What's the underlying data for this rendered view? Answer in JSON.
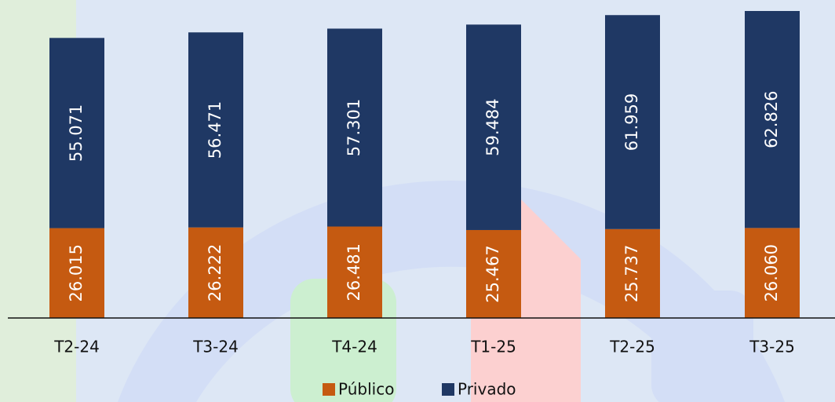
{
  "chart_data": {
    "type": "stacked_bar",
    "categories": [
      "T2-24",
      "T3-24",
      "T4-24",
      "T1-25",
      "T2-25",
      "T3-25"
    ],
    "series": [
      {
        "name": "Público",
        "color": "#c55a11",
        "values": [
          26015,
          26222,
          26481,
          25467,
          25737,
          26060
        ],
        "value_labels": [
          "26.015",
          "26.222",
          "26.481",
          "25.467",
          "25.737",
          "26.060"
        ]
      },
      {
        "name": "Privado",
        "color": "#1f3864",
        "values": [
          55071,
          56471,
          57301,
          59484,
          61959,
          62826
        ],
        "value_labels": [
          "55.071",
          "56.471",
          "57.301",
          "59.484",
          "61.959",
          "62.826"
        ]
      }
    ],
    "legend": "bottom"
  }
}
